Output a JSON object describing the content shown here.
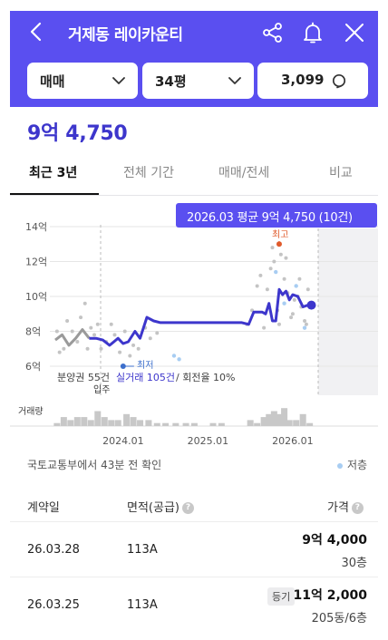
{
  "header": {
    "title": "거제동 레이카운티",
    "dropdowns": {
      "trade_type": "매매",
      "area": "34평",
      "listing_count": "3,099"
    },
    "icons": [
      "back-icon",
      "share-icon",
      "bell-icon",
      "close-icon",
      "chevron-down-icon",
      "search-icon"
    ],
    "accent_color": "#5a4ff0"
  },
  "price": {
    "current": "9억 4,750"
  },
  "tabs": [
    {
      "label": "최근 3년",
      "active": true
    },
    {
      "label": "전체 기간",
      "active": false
    },
    {
      "label": "매매/전세",
      "active": false
    },
    {
      "label": "비교",
      "active": false
    }
  ],
  "chart": {
    "tooltip": "2026.03 평균 9억 4,750 (10건)",
    "y_tick_labels": [
      "14억",
      "12억",
      "10억",
      "8억",
      "6억"
    ],
    "x_tick_labels": [
      "2024.01",
      "2025.01",
      "2026.01"
    ],
    "max_label": "최고",
    "min_label": "최저",
    "presale_label": "분양권 55건",
    "actual_trade_label": "실거래 105건",
    "turnover_label": "/ 회전율 10%",
    "move_in_label": "입주",
    "volume_label": "거래량"
  },
  "chart_data": {
    "type": "line",
    "ylim": [
      5.5,
      14.5
    ],
    "ytick_values": [
      14,
      12,
      10,
      8,
      6
    ],
    "xtick_values": [
      2024.0,
      2025.0,
      2026.0
    ],
    "xlim": [
      2023.2,
      2026.3
    ],
    "series": [
      {
        "name": "분양권",
        "color": "#999999",
        "x": [
          2023.2,
          2023.28,
          2023.36,
          2023.44,
          2023.52,
          2023.6
        ],
        "y": [
          7.5,
          7.8,
          7.2,
          7.6,
          8.1,
          7.6
        ]
      },
      {
        "name": "실거래",
        "color": "#3d36cc",
        "x": [
          2023.6,
          2023.68,
          2023.76,
          2023.84,
          2023.94,
          2024.0,
          2024.06,
          2024.14,
          2024.2,
          2024.28,
          2024.36,
          2024.44,
          2024.52,
          2024.6,
          2024.68,
          2024.76,
          2024.84,
          2024.92,
          2025.0,
          2025.1,
          2025.2,
          2025.3,
          2025.4,
          2025.48,
          2025.54,
          2025.6,
          2025.64,
          2025.68,
          2025.72,
          2025.76,
          2025.8,
          2025.84,
          2025.88,
          2025.92,
          2025.96,
          2026.0,
          2026.06,
          2026.12,
          2026.18,
          2026.22
        ],
        "y": [
          7.6,
          7.6,
          7.5,
          7.2,
          7.6,
          7.3,
          7.4,
          8.0,
          7.6,
          8.8,
          8.6,
          8.5,
          8.5,
          8.5,
          8.5,
          8.5,
          8.5,
          8.5,
          8.5,
          8.5,
          8.5,
          8.5,
          8.5,
          8.4,
          9.1,
          9.1,
          9.1,
          9.0,
          9.6,
          8.6,
          8.6,
          10.4,
          10.1,
          10.3,
          9.8,
          10.1,
          10.0,
          9.4,
          9.5,
          9.5
        ]
      }
    ],
    "scatter_gray": {
      "x": [
        2023.22,
        2023.25,
        2023.3,
        2023.34,
        2023.4,
        2023.46,
        2023.5,
        2023.55,
        2023.58,
        2023.62,
        2023.66,
        2023.7,
        2023.74,
        2023.8,
        2023.86,
        2023.9,
        2023.96,
        2024.02,
        2024.08,
        2024.12,
        2024.18,
        2024.26,
        2024.32,
        2024.4,
        2025.46,
        2025.52,
        2025.58,
        2025.62,
        2025.66,
        2025.7,
        2025.74,
        2025.78,
        2025.82,
        2025.86,
        2025.9,
        2025.94,
        2025.98,
        2026.02,
        2026.06,
        2026.1,
        2026.14,
        2026.18,
        2025.76,
        2025.84,
        2025.92,
        2026.0,
        2026.08,
        2026.16
      ],
      "y": [
        8.0,
        6.8,
        7.0,
        8.6,
        8.0,
        7.4,
        8.8,
        9.6,
        7.0,
        8.2,
        7.8,
        8.4,
        7.0,
        7.4,
        8.4,
        7.8,
        6.8,
        8.0,
        6.6,
        7.2,
        7.0,
        8.2,
        7.6,
        7.9,
        8.4,
        9.2,
        10.6,
        11.2,
        8.2,
        10.4,
        11.6,
        12.0,
        9.2,
        12.4,
        11.0,
        10.2,
        8.8,
        9.8,
        10.0,
        9.4,
        8.6,
        10.4,
        12.8,
        8.4,
        12.2,
        9.0,
        11.0,
        8.4
      ]
    },
    "scatter_blue": {
      "x": [
        2024.6,
        2024.66,
        2025.8,
        2025.9,
        2026.04,
        2026.14
      ],
      "y": [
        6.6,
        6.4,
        11.4,
        9.6,
        10.6,
        8.2
      ]
    },
    "max_point": {
      "x": 2025.84,
      "y": 13.0
    },
    "min_point": {
      "x": 2024.0,
      "y": 6.0
    },
    "current_point": {
      "x": 2026.22,
      "y": 9.5
    },
    "volume": {
      "x": [
        2023.22,
        2023.3,
        2023.38,
        2023.46,
        2023.54,
        2023.62,
        2023.7,
        2023.78,
        2023.86,
        2023.94,
        2024.04,
        2024.12,
        2024.2,
        2024.3,
        2024.4,
        2024.5,
        2024.62,
        2024.74,
        2024.84,
        2025.06,
        2025.16,
        2025.5,
        2025.58,
        2025.66,
        2025.72,
        2025.78,
        2025.84,
        2025.9,
        2025.96,
        2026.04,
        2026.12,
        2026.2
      ],
      "values": [
        1,
        3,
        2,
        3,
        3,
        2,
        5,
        3,
        2,
        2,
        4,
        3,
        2,
        2,
        1,
        1,
        1,
        1,
        1,
        1,
        1,
        2,
        1,
        3,
        4,
        5,
        4,
        6,
        2,
        2,
        4,
        1
      ]
    }
  },
  "source_text": "국토교통부에서 43분 전 확인",
  "legend_low": "저층",
  "table": {
    "headers": {
      "date": "계약일",
      "area": "면적(공급)",
      "price": "가격"
    },
    "rows": [
      {
        "date": "26.03.28",
        "area": "113A",
        "price": "9억 4,000",
        "floor": "30층",
        "badge": ""
      },
      {
        "date": "26.03.25",
        "area": "113A",
        "price": "11억 2,000",
        "floor": "205동/6층",
        "badge": "등기"
      }
    ]
  }
}
